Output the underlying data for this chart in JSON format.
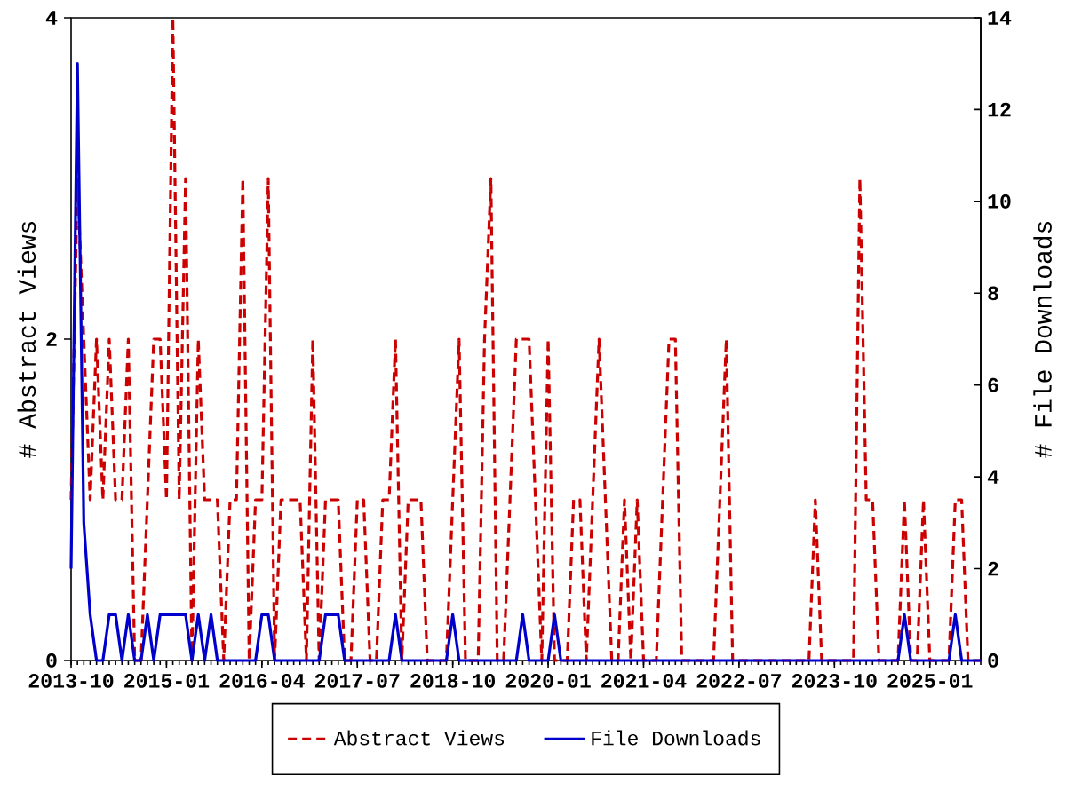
{
  "chart_data": {
    "type": "line",
    "x": [
      "2013-10",
      "2013-11",
      "2013-12",
      "2014-01",
      "2014-02",
      "2014-03",
      "2014-04",
      "2014-05",
      "2014-06",
      "2014-07",
      "2014-08",
      "2014-09",
      "2014-10",
      "2014-11",
      "2014-12",
      "2015-01",
      "2015-02",
      "2015-03",
      "2015-04",
      "2015-05",
      "2015-06",
      "2015-07",
      "2015-08",
      "2015-09",
      "2015-10",
      "2015-11",
      "2015-12",
      "2016-01",
      "2016-02",
      "2016-03",
      "2016-04",
      "2016-05",
      "2016-06",
      "2016-07",
      "2016-08",
      "2016-09",
      "2016-10",
      "2016-11",
      "2016-12",
      "2017-01",
      "2017-02",
      "2017-03",
      "2017-04",
      "2017-05",
      "2017-06",
      "2017-07",
      "2017-08",
      "2017-09",
      "2017-10",
      "2017-11",
      "2017-12",
      "2018-01",
      "2018-02",
      "2018-03",
      "2018-04",
      "2018-05",
      "2018-06",
      "2018-07",
      "2018-08",
      "2018-09",
      "2018-10",
      "2018-11",
      "2018-12",
      "2019-01",
      "2019-02",
      "2019-03",
      "2019-04",
      "2019-05",
      "2019-06",
      "2019-07",
      "2019-08",
      "2019-09",
      "2019-10",
      "2019-11",
      "2019-12",
      "2020-01",
      "2020-02",
      "2020-03",
      "2020-04",
      "2020-05",
      "2020-06",
      "2020-07",
      "2020-08",
      "2020-09",
      "2020-10",
      "2020-11",
      "2020-12",
      "2021-01",
      "2021-02",
      "2021-03",
      "2021-04",
      "2021-05",
      "2021-06",
      "2021-07",
      "2021-08",
      "2021-09",
      "2021-10",
      "2021-11",
      "2021-12",
      "2022-01",
      "2022-02",
      "2022-03",
      "2022-04",
      "2022-05",
      "2022-06",
      "2022-07",
      "2022-08",
      "2022-09",
      "2022-10",
      "2022-11",
      "2022-12",
      "2023-01",
      "2023-02",
      "2023-03",
      "2023-04",
      "2023-05",
      "2023-06",
      "2023-07",
      "2023-08",
      "2023-09",
      "2023-10",
      "2023-11",
      "2023-12",
      "2024-01",
      "2024-02",
      "2024-03",
      "2024-04",
      "2024-05",
      "2024-06",
      "2024-07",
      "2024-08",
      "2024-09",
      "2024-10",
      "2024-11",
      "2024-12",
      "2025-01",
      "2025-02",
      "2025-03",
      "2025-04",
      "2025-05",
      "2025-06",
      "2025-07",
      "2025-08",
      "2025-09"
    ],
    "xlim": [
      "2013-10",
      "2025-09"
    ],
    "xticks": [
      "2013-10",
      "2015-01",
      "2016-04",
      "2017-07",
      "2018-10",
      "2020-01",
      "2021-04",
      "2022-07",
      "2023-10",
      "2025-01"
    ],
    "ylabel": "# Abstract Views",
    "y2label": "# File Downloads",
    "ylim": [
      0,
      4
    ],
    "yticks": [
      0,
      2,
      4
    ],
    "y2lim": [
      0,
      14
    ],
    "y2ticks": [
      0,
      2,
      4,
      6,
      8,
      10,
      12,
      14
    ],
    "legend": "bottom",
    "series": [
      {
        "name": "Abstract Views",
        "color": "#cc0000",
        "line_style": "dashed",
        "values": [
          1,
          3,
          2,
          1,
          2,
          1,
          2,
          1,
          1,
          2,
          0,
          0,
          1,
          2,
          2,
          1,
          4,
          1,
          3,
          0,
          2,
          1,
          1,
          1,
          0,
          1,
          1,
          3,
          0,
          1,
          1,
          3,
          0,
          1,
          1,
          1,
          1,
          0,
          2,
          0,
          1,
          1,
          1,
          0,
          0,
          1,
          1,
          0,
          0,
          1,
          1,
          2,
          0,
          1,
          1,
          1,
          0,
          0,
          0,
          0,
          1,
          2,
          0,
          0,
          0,
          2,
          3,
          0,
          0,
          1,
          2,
          2,
          2,
          1,
          0,
          2,
          0,
          0,
          0,
          1,
          1,
          0,
          1,
          2,
          1,
          0,
          0,
          1,
          0,
          1,
          0,
          0,
          0,
          1,
          2,
          2,
          0,
          0,
          0,
          0,
          0,
          0,
          1,
          2,
          0,
          0,
          0,
          0,
          0,
          0,
          0,
          0,
          0,
          0,
          0,
          0,
          0,
          1,
          0,
          0,
          0,
          0,
          0,
          0,
          3,
          1,
          1,
          0,
          0,
          0,
          0,
          1,
          0,
          0,
          1,
          0,
          0,
          0,
          0,
          1,
          1,
          0,
          0,
          0
        ]
      },
      {
        "name": "File Downloads",
        "color": "#0000cc",
        "line_style": "solid",
        "axis": "y2",
        "values": [
          2,
          13,
          3,
          1,
          0,
          0,
          1,
          1,
          0,
          1,
          0,
          0,
          1,
          0,
          1,
          1,
          1,
          1,
          1,
          0,
          1,
          0,
          1,
          0,
          0,
          0,
          0,
          0,
          0,
          0,
          1,
          1,
          0,
          0,
          0,
          0,
          0,
          0,
          0,
          0,
          1,
          1,
          1,
          0,
          0,
          0,
          0,
          0,
          0,
          0,
          0,
          1,
          0,
          0,
          0,
          0,
          0,
          0,
          0,
          0,
          1,
          0,
          0,
          0,
          0,
          0,
          0,
          0,
          0,
          0,
          0,
          1,
          0,
          0,
          0,
          0,
          1,
          0,
          0,
          0,
          0,
          0,
          0,
          0,
          0,
          0,
          0,
          0,
          0,
          0,
          0,
          0,
          0,
          0,
          0,
          0,
          0,
          0,
          0,
          0,
          0,
          0,
          0,
          0,
          0,
          0,
          0,
          0,
          0,
          0,
          0,
          0,
          0,
          0,
          0,
          0,
          0,
          0,
          0,
          0,
          0,
          0,
          0,
          0,
          0,
          0,
          0,
          0,
          0,
          0,
          0,
          1,
          0,
          0,
          0,
          0,
          0,
          0,
          0,
          1,
          0,
          0,
          0,
          0
        ]
      }
    ]
  }
}
